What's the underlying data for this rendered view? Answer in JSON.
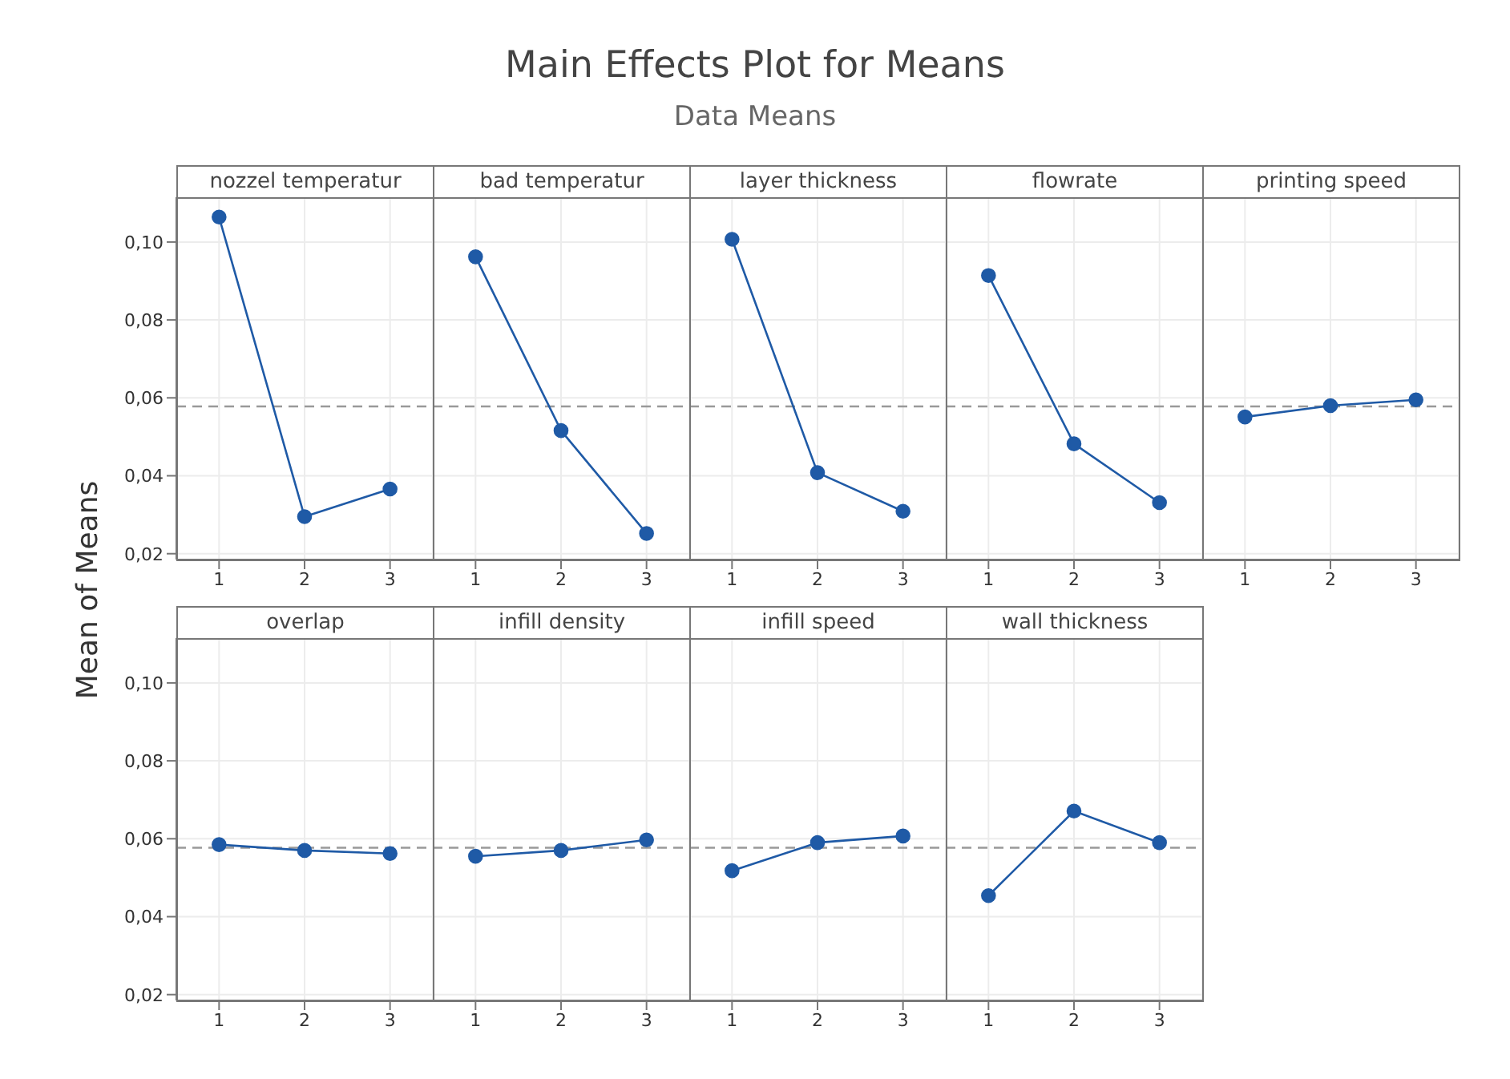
{
  "chart_data": [
    {
      "type": "other",
      "title": "Main Effects Plot for Means",
      "subtitle": "Data Means",
      "ylabel": "Mean of Means"
    },
    {
      "type": "line",
      "title": "nozzel temperatur",
      "categories": [
        "1",
        "2",
        "3"
      ],
      "values": [
        0.1064,
        0.0295,
        0.0366
      ],
      "color": "#1f5aa6",
      "marker": "circle",
      "grid": true,
      "ylim": [
        0.0185,
        0.1115
      ],
      "yticks": [
        {
          "value": 0.02,
          "label": "0,02"
        },
        {
          "value": 0.04,
          "label": "0,04"
        },
        {
          "value": 0.06,
          "label": "0,06"
        },
        {
          "value": 0.08,
          "label": "0,08"
        },
        {
          "value": 0.1,
          "label": "0,10"
        }
      ],
      "ref_lines": [
        {
          "axis": "y",
          "value": 0.0578,
          "color": "#999999",
          "line_style": "dashed"
        }
      ]
    },
    {
      "type": "line",
      "title": "bad temperatur",
      "categories": [
        "1",
        "2",
        "3"
      ],
      "values": [
        0.0962,
        0.0516,
        0.0252
      ],
      "color": "#1f5aa6",
      "marker": "circle",
      "grid": true,
      "tick_labels": "x",
      "ylim": [
        0.0185,
        0.1115
      ],
      "yticks": [
        0.02,
        0.04,
        0.06,
        0.08,
        0.1
      ],
      "ref_lines": [
        {
          "axis": "y",
          "value": 0.0578,
          "color": "#999999",
          "line_style": "dashed"
        }
      ]
    },
    {
      "type": "line",
      "title": "layer thickness",
      "categories": [
        "1",
        "2",
        "3"
      ],
      "values": [
        0.1007,
        0.0408,
        0.0309
      ],
      "color": "#1f5aa6",
      "marker": "circle",
      "grid": true,
      "tick_labels": "x",
      "ylim": [
        0.0185,
        0.1115
      ],
      "yticks": [
        0.02,
        0.04,
        0.06,
        0.08,
        0.1
      ],
      "ref_lines": [
        {
          "axis": "y",
          "value": 0.0578,
          "color": "#999999",
          "line_style": "dashed"
        }
      ]
    },
    {
      "type": "line",
      "title": "flowrate",
      "categories": [
        "1",
        "2",
        "3"
      ],
      "values": [
        0.0914,
        0.0482,
        0.0331
      ],
      "color": "#1f5aa6",
      "marker": "circle",
      "grid": true,
      "tick_labels": "x",
      "ylim": [
        0.0185,
        0.1115
      ],
      "yticks": [
        0.02,
        0.04,
        0.06,
        0.08,
        0.1
      ],
      "ref_lines": [
        {
          "axis": "y",
          "value": 0.0578,
          "color": "#999999",
          "line_style": "dashed"
        }
      ]
    },
    {
      "type": "line",
      "title": "printing speed",
      "categories": [
        "1",
        "2",
        "3"
      ],
      "values": [
        0.0551,
        0.058,
        0.0595
      ],
      "color": "#1f5aa6",
      "marker": "circle",
      "grid": true,
      "tick_labels": "x",
      "ylim": [
        0.0185,
        0.1115
      ],
      "yticks": [
        0.02,
        0.04,
        0.06,
        0.08,
        0.1
      ],
      "ref_lines": [
        {
          "axis": "y",
          "value": 0.0578,
          "color": "#999999",
          "line_style": "dashed"
        }
      ]
    },
    {
      "type": "line",
      "title": "overlap",
      "categories": [
        "1",
        "2",
        "3"
      ],
      "values": [
        0.0585,
        0.057,
        0.0562
      ],
      "color": "#1f5aa6",
      "marker": "circle",
      "grid": true,
      "ylim": [
        0.0185,
        0.1115
      ],
      "yticks": [
        {
          "value": 0.02,
          "label": "0,02"
        },
        {
          "value": 0.04,
          "label": "0,04"
        },
        {
          "value": 0.06,
          "label": "0,06"
        },
        {
          "value": 0.08,
          "label": "0,08"
        },
        {
          "value": 0.1,
          "label": "0,10"
        }
      ],
      "ref_lines": [
        {
          "axis": "y",
          "value": 0.0577,
          "color": "#999999",
          "line_style": "dashed"
        }
      ]
    },
    {
      "type": "line",
      "title": "infill density",
      "categories": [
        "1",
        "2",
        "3"
      ],
      "values": [
        0.0555,
        0.057,
        0.0597
      ],
      "color": "#1f5aa6",
      "marker": "circle",
      "grid": true,
      "tick_labels": "x",
      "ylim": [
        0.0185,
        0.1115
      ],
      "yticks": [
        0.02,
        0.04,
        0.06,
        0.08,
        0.1
      ],
      "ref_lines": [
        {
          "axis": "y",
          "value": 0.0577,
          "color": "#999999",
          "line_style": "dashed"
        }
      ]
    },
    {
      "type": "line",
      "title": "infill speed",
      "categories": [
        "1",
        "2",
        "3"
      ],
      "values": [
        0.0518,
        0.059,
        0.0607
      ],
      "color": "#1f5aa6",
      "marker": "circle",
      "grid": true,
      "tick_labels": "x",
      "ylim": [
        0.0185,
        0.1115
      ],
      "yticks": [
        0.02,
        0.04,
        0.06,
        0.08,
        0.1
      ],
      "ref_lines": [
        {
          "axis": "y",
          "value": 0.0577,
          "color": "#999999",
          "line_style": "dashed"
        }
      ]
    },
    {
      "type": "line",
      "title": "wall thickness",
      "categories": [
        "1",
        "2",
        "3"
      ],
      "values": [
        0.0454,
        0.0671,
        0.059
      ],
      "color": "#1f5aa6",
      "marker": "circle",
      "grid": true,
      "tick_labels": "x",
      "ylim": [
        0.0185,
        0.1115
      ],
      "yticks": [
        0.02,
        0.04,
        0.06,
        0.08,
        0.1
      ],
      "ref_lines": [
        {
          "axis": "y",
          "value": 0.0577,
          "color": "#999999",
          "line_style": "dashed"
        }
      ]
    }
  ]
}
